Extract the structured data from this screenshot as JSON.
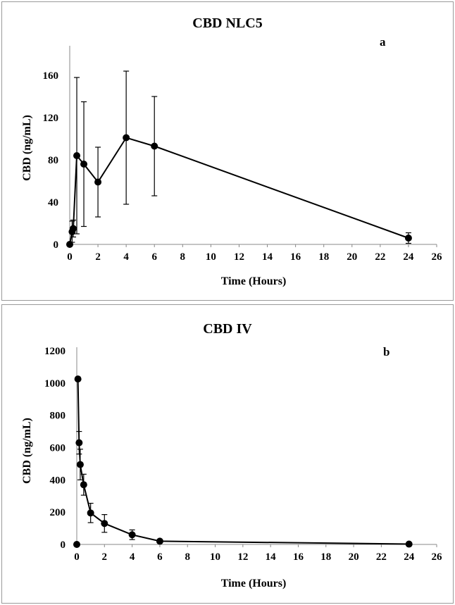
{
  "chart_data": [
    {
      "type": "line",
      "title": "CBD NLC5",
      "panel_label": "a",
      "xlabel": "Time (Hours)",
      "ylabel": "CBD (ng/mL)",
      "xlim": [
        0,
        26
      ],
      "ylim": [
        0,
        180
      ],
      "xticks": [
        0,
        2,
        4,
        6,
        8,
        10,
        12,
        14,
        16,
        18,
        20,
        22,
        24,
        26
      ],
      "yticks": [
        0,
        40,
        80,
        120,
        160
      ],
      "grid": false,
      "series": [
        {
          "x": [
            0,
            0.17,
            0.25,
            0.5,
            1,
            2,
            4,
            6,
            24
          ],
          "y": [
            0,
            12,
            15,
            84,
            76,
            59,
            101,
            93,
            6
          ],
          "err": [
            0,
            10,
            8,
            74,
            59,
            33,
            63,
            47,
            5
          ]
        }
      ]
    },
    {
      "type": "line",
      "title": "CBD IV",
      "panel_label": "b",
      "xlabel": "Time (Hours)",
      "ylabel": "CBD (ng/mL)",
      "xlim": [
        0,
        26
      ],
      "ylim": [
        0,
        1200
      ],
      "xticks": [
        0,
        2,
        4,
        6,
        8,
        10,
        12,
        14,
        16,
        18,
        20,
        22,
        24,
        26
      ],
      "yticks": [
        0,
        200,
        400,
        600,
        800,
        1000,
        1200
      ],
      "grid": false,
      "series": [
        {
          "x": [
            0.083,
            0.17,
            0.25,
            0.5,
            1,
            2,
            4,
            6,
            24
          ],
          "y": [
            1025,
            630,
            495,
            370,
            195,
            130,
            60,
            20,
            2
          ],
          "err": [
            0,
            70,
            95,
            65,
            60,
            55,
            30,
            5,
            2
          ]
        }
      ],
      "extra_points": [
        {
          "x": 0,
          "y": 0
        }
      ]
    }
  ]
}
